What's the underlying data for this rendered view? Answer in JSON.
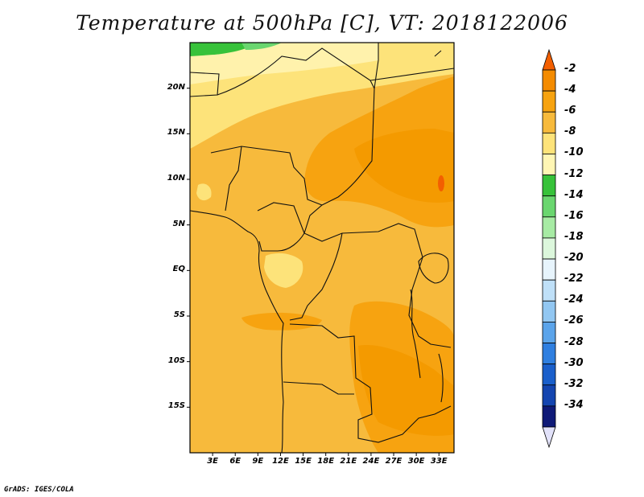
{
  "title": "Temperature at 500hPa [C], VT: 2018122006",
  "credit": "GrADS: IGES/COLA",
  "map": {
    "latitude_labels": [
      "20N",
      "15N",
      "10N",
      "5N",
      "EQ",
      "5S",
      "10S",
      "15S"
    ],
    "longitude_labels": [
      "3E",
      "6E",
      "9E",
      "12E",
      "15E",
      "18E",
      "21E",
      "24E",
      "27E",
      "30E",
      "33E"
    ],
    "longitude_range": [
      "0E",
      "35E"
    ],
    "latitude_range": [
      "20S",
      "25N"
    ]
  },
  "colorbar": {
    "labels": [
      "-2",
      "-4",
      "-6",
      "-8",
      "-10",
      "-12",
      "-14",
      "-16",
      "-18",
      "-20",
      "-22",
      "-24",
      "-26",
      "-28",
      "-30",
      "-32",
      "-34"
    ],
    "colors": [
      "#f35f00",
      "#f48b00",
      "#f7a310",
      "#f7ba3c",
      "#fde37a",
      "#fff6b4",
      "#37c23a",
      "#6ad66f",
      "#a7eba4",
      "#dcf7dc",
      "#e7f4fc",
      "#bfe0f8",
      "#92c7f2",
      "#5ba4ea",
      "#2f7fe0",
      "#1a5fcb",
      "#1445b0",
      "#0f1a78",
      "#e2e2fa"
    ]
  }
}
